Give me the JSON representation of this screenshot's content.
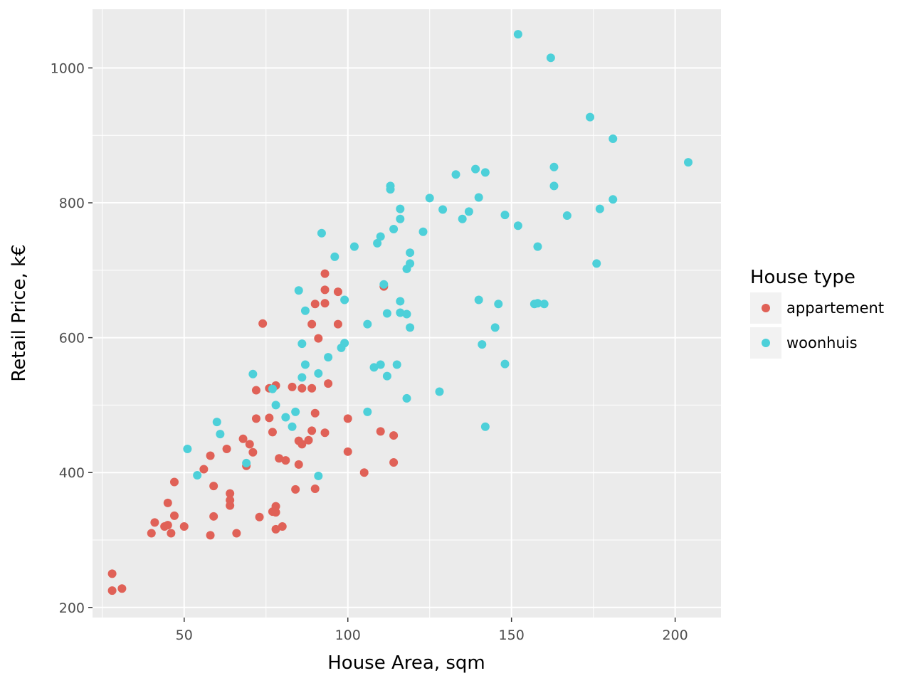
{
  "chart_data": {
    "type": "scatter",
    "xlabel": "House Area, sqm",
    "ylabel": "Retail Price, k€",
    "xlim": [
      22,
      214
    ],
    "ylim": [
      185,
      1087
    ],
    "x_ticks": [
      50,
      100,
      150,
      200
    ],
    "y_ticks": [
      200,
      400,
      600,
      800,
      1000
    ],
    "grid": true,
    "legend": {
      "title": "House type",
      "position": "right"
    },
    "series": [
      {
        "name": "appartement",
        "color": "#e06157",
        "points": [
          [
            28,
            250
          ],
          [
            28,
            225
          ],
          [
            31,
            228
          ],
          [
            40,
            310
          ],
          [
            41,
            326
          ],
          [
            44,
            320
          ],
          [
            45,
            322
          ],
          [
            45,
            355
          ],
          [
            46,
            310
          ],
          [
            47,
            336
          ],
          [
            47,
            386
          ],
          [
            50,
            320
          ],
          [
            56,
            405
          ],
          [
            58,
            425
          ],
          [
            58,
            307
          ],
          [
            59,
            380
          ],
          [
            59,
            335
          ],
          [
            63,
            435
          ],
          [
            64,
            369
          ],
          [
            64,
            359
          ],
          [
            64,
            351
          ],
          [
            66,
            310
          ],
          [
            68,
            450
          ],
          [
            69,
            410
          ],
          [
            70,
            442
          ],
          [
            71,
            430
          ],
          [
            72,
            480
          ],
          [
            72,
            522
          ],
          [
            73,
            334
          ],
          [
            74,
            621
          ],
          [
            76,
            525
          ],
          [
            76,
            481
          ],
          [
            77,
            460
          ],
          [
            77,
            342
          ],
          [
            78,
            341
          ],
          [
            78,
            350
          ],
          [
            78,
            316
          ],
          [
            78,
            529
          ],
          [
            79,
            421
          ],
          [
            80,
            320
          ],
          [
            81,
            418
          ],
          [
            83,
            527
          ],
          [
            84,
            375
          ],
          [
            85,
            447
          ],
          [
            85,
            412
          ],
          [
            86,
            442
          ],
          [
            86,
            525
          ],
          [
            88,
            448
          ],
          [
            89,
            525
          ],
          [
            89,
            620
          ],
          [
            89,
            462
          ],
          [
            90,
            650
          ],
          [
            90,
            488
          ],
          [
            90,
            376
          ],
          [
            91,
            599
          ],
          [
            93,
            695
          ],
          [
            93,
            671
          ],
          [
            93,
            651
          ],
          [
            93,
            459
          ],
          [
            94,
            532
          ],
          [
            97,
            668
          ],
          [
            97,
            620
          ],
          [
            100,
            480
          ],
          [
            100,
            431
          ],
          [
            105,
            400
          ],
          [
            110,
            461
          ],
          [
            111,
            676
          ],
          [
            114,
            455
          ],
          [
            114,
            415
          ]
        ]
      },
      {
        "name": "woonhuis",
        "color": "#4dd0d9",
        "points": [
          [
            51,
            435
          ],
          [
            54,
            396
          ],
          [
            60,
            475
          ],
          [
            61,
            457
          ],
          [
            69,
            414
          ],
          [
            71,
            546
          ],
          [
            77,
            524
          ],
          [
            78,
            500
          ],
          [
            81,
            482
          ],
          [
            83,
            468
          ],
          [
            84,
            490
          ],
          [
            85,
            670
          ],
          [
            86,
            591
          ],
          [
            86,
            541
          ],
          [
            87,
            560
          ],
          [
            87,
            640
          ],
          [
            91,
            547
          ],
          [
            91,
            395
          ],
          [
            92,
            755
          ],
          [
            94,
            571
          ],
          [
            96,
            720
          ],
          [
            98,
            585
          ],
          [
            99,
            592
          ],
          [
            99,
            656
          ],
          [
            102,
            735
          ],
          [
            106,
            620
          ],
          [
            106,
            490
          ],
          [
            108,
            556
          ],
          [
            109,
            740
          ],
          [
            110,
            750
          ],
          [
            110,
            560
          ],
          [
            111,
            679
          ],
          [
            112,
            636
          ],
          [
            112,
            543
          ],
          [
            113,
            825
          ],
          [
            113,
            820
          ],
          [
            114,
            761
          ],
          [
            115,
            560
          ],
          [
            116,
            791
          ],
          [
            116,
            776
          ],
          [
            116,
            654
          ],
          [
            116,
            637
          ],
          [
            118,
            702
          ],
          [
            118,
            635
          ],
          [
            118,
            510
          ],
          [
            119,
            726
          ],
          [
            119,
            710
          ],
          [
            119,
            615
          ],
          [
            123,
            757
          ],
          [
            125,
            807
          ],
          [
            128,
            520
          ],
          [
            129,
            790
          ],
          [
            133,
            842
          ],
          [
            135,
            776
          ],
          [
            137,
            787
          ],
          [
            139,
            850
          ],
          [
            140,
            808
          ],
          [
            140,
            656
          ],
          [
            141,
            590
          ],
          [
            142,
            845
          ],
          [
            142,
            468
          ],
          [
            145,
            615
          ],
          [
            146,
            650
          ],
          [
            148,
            782
          ],
          [
            148,
            561
          ],
          [
            152,
            1050
          ],
          [
            152,
            766
          ],
          [
            157,
            650
          ],
          [
            158,
            735
          ],
          [
            158,
            651
          ],
          [
            160,
            650
          ],
          [
            162,
            1015
          ],
          [
            163,
            853
          ],
          [
            163,
            825
          ],
          [
            167,
            781
          ],
          [
            174,
            927
          ],
          [
            176,
            710
          ],
          [
            177,
            791
          ],
          [
            181,
            895
          ],
          [
            181,
            805
          ],
          [
            204,
            860
          ]
        ]
      }
    ]
  }
}
